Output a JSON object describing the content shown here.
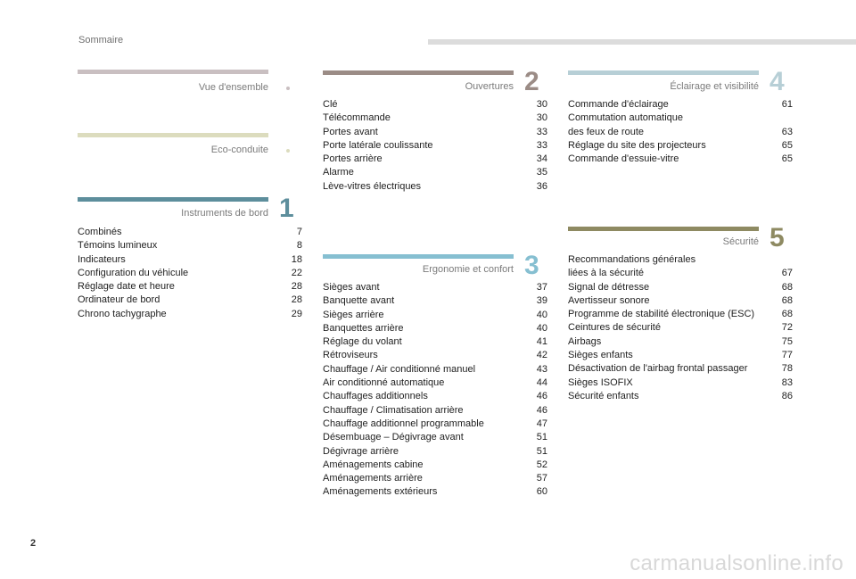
{
  "header": {
    "title": "Sommaire"
  },
  "page_number": "2",
  "watermark": "carmanualsonline.info",
  "colors": {
    "vue": "#c9bfc1",
    "eco": "#dcdcbe",
    "instruments": "#5d8e9c",
    "ouvertures": "#9b8c86",
    "ergonomie": "#86bfd1",
    "eclairage": "#b7cfd6",
    "securite": "#8e8a62"
  },
  "sections": {
    "vue": {
      "title": "Vue d'ensemble",
      "number": "",
      "entries": []
    },
    "eco": {
      "title": "Eco-conduite",
      "number": "",
      "entries": []
    },
    "instruments": {
      "title": "Instruments de bord",
      "number": "1",
      "entries": [
        {
          "label": "Combinés",
          "page": "7"
        },
        {
          "label": "Témoins lumineux",
          "page": "8"
        },
        {
          "label": "Indicateurs",
          "page": "18"
        },
        {
          "label": "Configuration du véhicule",
          "page": "22"
        },
        {
          "label": "Réglage date et heure",
          "page": "28"
        },
        {
          "label": "Ordinateur de bord",
          "page": "28"
        },
        {
          "label": "Chrono tachygraphe",
          "page": "29"
        }
      ]
    },
    "ouvertures": {
      "title": "Ouvertures",
      "number": "2",
      "entries": [
        {
          "label": "Clé",
          "page": "30"
        },
        {
          "label": "Télécommande",
          "page": "30"
        },
        {
          "label": "Portes avant",
          "page": "33"
        },
        {
          "label": "Porte latérale coulissante",
          "page": "33"
        },
        {
          "label": "Portes arrière",
          "page": "34"
        },
        {
          "label": "Alarme",
          "page": "35"
        },
        {
          "label": "Lève-vitres électriques",
          "page": "36"
        }
      ]
    },
    "ergonomie": {
      "title": "Ergonomie et confort",
      "number": "3",
      "entries": [
        {
          "label": "Sièges avant",
          "page": "37"
        },
        {
          "label": "Banquette avant",
          "page": "39"
        },
        {
          "label": "Sièges arrière",
          "page": "40"
        },
        {
          "label": "Banquettes arrière",
          "page": "40"
        },
        {
          "label": "Réglage du volant",
          "page": "41"
        },
        {
          "label": "Rétroviseurs",
          "page": "42"
        },
        {
          "label": "Chauffage / Air conditionné manuel",
          "page": "43"
        },
        {
          "label": "Air conditionné automatique",
          "page": "44"
        },
        {
          "label": "Chauffages additionnels",
          "page": "46"
        },
        {
          "label": "Chauffage / Climatisation arrière",
          "page": "46"
        },
        {
          "label": "Chauffage additionnel programmable",
          "page": "47"
        },
        {
          "label": "Désembuage – Dégivrage avant",
          "page": "51"
        },
        {
          "label": "Dégivrage arrière",
          "page": "51"
        },
        {
          "label": "Aménagements cabine",
          "page": "52"
        },
        {
          "label": "Aménagements arrière",
          "page": "57"
        },
        {
          "label": "Aménagements extérieurs",
          "page": "60"
        }
      ]
    },
    "eclairage": {
      "title": "Éclairage et visibilité",
      "number": "4",
      "entries": [
        {
          "label": "Commande d'éclairage",
          "page": "61"
        },
        {
          "label": "Commutation automatique\ndes feux de route",
          "page": "63"
        },
        {
          "label": "Réglage du site des projecteurs",
          "page": "65"
        },
        {
          "label": "Commande d'essuie-vitre",
          "page": "65"
        }
      ]
    },
    "securite": {
      "title": "Sécurité",
      "number": "5",
      "entries": [
        {
          "label": "Recommandations générales\nliées à la sécurité",
          "page": "67"
        },
        {
          "label": "Signal de détresse",
          "page": "68"
        },
        {
          "label": "Avertisseur sonore",
          "page": "68"
        },
        {
          "label": "Programme de stabilité électronique (ESC)",
          "page": "68"
        },
        {
          "label": "Ceintures de sécurité",
          "page": "72"
        },
        {
          "label": "Airbags",
          "page": "75"
        },
        {
          "label": "Sièges enfants",
          "page": "77"
        },
        {
          "label": "Désactivation de l'airbag frontal passager",
          "page": "78"
        },
        {
          "label": "Sièges ISOFIX",
          "page": "83"
        },
        {
          "label": "Sécurité enfants",
          "page": "86"
        }
      ]
    }
  }
}
